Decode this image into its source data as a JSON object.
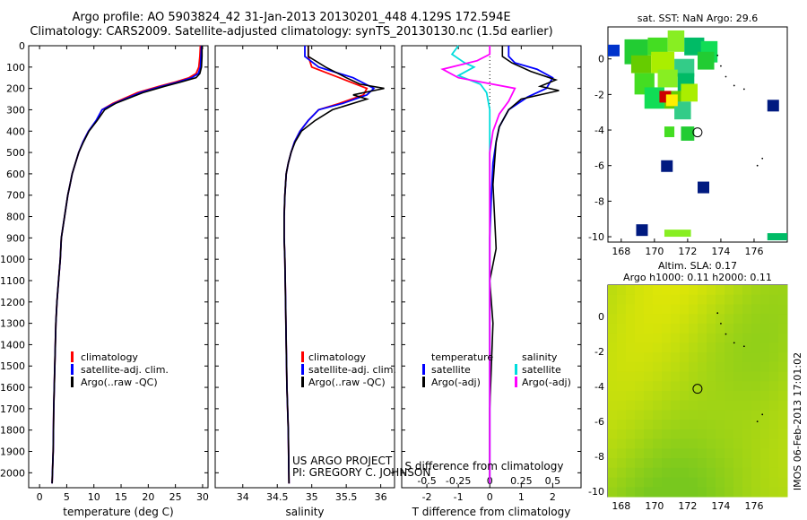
{
  "header": {
    "line1": "Argo profile: AO 5903824_42 31-Jan-2013 20130201_448 4.129S 172.594E",
    "line2": "Climatology: CARS2009. Satellite-adjusted climatology: synTS_20130130.nc (1.5d earlier)"
  },
  "colors": {
    "climatology": "#ff0000",
    "satellite": "#0000ff",
    "argo": "#000000",
    "salinity_sat": "#00dddd",
    "salinity_argo": "#ff00ff",
    "sst_ocean": "#ffffff"
  },
  "footer": {
    "project": "US ARGO PROJECT",
    "pi": "PI: GREGORY C. JOHNSON",
    "imos": "IMOS 06-Feb-2013 17:01:02"
  },
  "chart_data": [
    {
      "type": "line",
      "panel": "temperature",
      "xlabel": "temperature (deg C)",
      "xlim": [
        -2,
        31
      ],
      "xticks": [
        0,
        5,
        10,
        15,
        20,
        25,
        30
      ],
      "ylim": [
        2070,
        0
      ],
      "yticks": [
        0,
        100,
        200,
        300,
        400,
        500,
        600,
        700,
        800,
        900,
        1000,
        1100,
        1200,
        1300,
        1400,
        1500,
        1600,
        1700,
        1800,
        1900,
        2000
      ],
      "legend": [
        "climatology",
        "satellite-adj. clim.",
        "Argo(..raw -QC)"
      ],
      "series": [
        {
          "name": "climatology",
          "color_key": "climatology",
          "x": [
            29.6,
            29.5,
            29.3,
            28.8,
            27.5,
            25.0,
            22.0,
            18.0,
            13.5,
            11.5,
            10.5,
            9.0,
            8.0,
            7.2,
            6.6,
            6.0,
            5.6,
            5.2,
            4.9,
            4.6,
            4.3,
            4.0,
            3.8,
            3.5,
            3.2,
            3.0,
            2.8,
            2.6,
            2.5,
            2.3
          ],
          "y": [
            0,
            50,
            100,
            130,
            150,
            170,
            190,
            220,
            270,
            300,
            350,
            400,
            450,
            500,
            550,
            600,
            650,
            700,
            750,
            800,
            850,
            900,
            1000,
            1100,
            1200,
            1300,
            1500,
            1700,
            1900,
            2050
          ]
        },
        {
          "name": "satellite-adj. clim.",
          "color_key": "satellite",
          "x": [
            29.8,
            29.7,
            29.6,
            29.2,
            28.0,
            25.5,
            22.5,
            18.5,
            13.8,
            11.5,
            10.4,
            9.0,
            8.0,
            7.2,
            6.6,
            6.0,
            5.6,
            5.2,
            4.9,
            4.6,
            4.3,
            4.0,
            3.8,
            3.5,
            3.2,
            3.0,
            2.8,
            2.6,
            2.5,
            2.3
          ],
          "y": [
            0,
            50,
            100,
            130,
            150,
            170,
            190,
            220,
            270,
            300,
            350,
            400,
            450,
            500,
            550,
            600,
            650,
            700,
            750,
            800,
            850,
            900,
            1000,
            1100,
            1200,
            1300,
            1500,
            1700,
            1900,
            2050
          ]
        },
        {
          "name": "Argo(..raw -QC)",
          "color_key": "argo",
          "x": [
            29.9,
            29.9,
            29.8,
            29.5,
            28.8,
            26.0,
            23.0,
            19.0,
            14.0,
            12.0,
            10.6,
            9.1,
            8.1,
            7.2,
            6.6,
            6.0,
            5.6,
            5.2,
            4.9,
            4.6,
            4.3,
            4.0,
            3.8,
            3.5,
            3.2,
            3.0,
            2.8,
            2.6,
            2.5,
            2.3
          ],
          "y": [
            0,
            50,
            100,
            130,
            150,
            170,
            190,
            220,
            270,
            300,
            350,
            400,
            450,
            500,
            550,
            600,
            650,
            700,
            750,
            800,
            850,
            900,
            1000,
            1100,
            1200,
            1300,
            1500,
            1700,
            1900,
            2050
          ]
        }
      ]
    },
    {
      "type": "line",
      "panel": "salinity",
      "xlabel": "salinity",
      "xlim": [
        33.6,
        36.2
      ],
      "xticks": [
        34,
        34.5,
        35,
        35.5,
        36
      ],
      "legend": [
        "climatology",
        "satellite-adj. clim.",
        "Argo(..raw -QC)"
      ],
      "series": [
        {
          "name": "climatology",
          "color_key": "climatology",
          "x": [
            34.95,
            34.95,
            35.0,
            35.4,
            35.8,
            35.75,
            35.4,
            35.1,
            34.95,
            34.83,
            34.75,
            34.7,
            34.66,
            34.63,
            34.61,
            34.6,
            34.6,
            34.61,
            34.62,
            34.63,
            34.64,
            34.66,
            34.67
          ],
          "y": [
            0,
            50,
            100,
            150,
            200,
            230,
            270,
            300,
            350,
            400,
            450,
            500,
            550,
            600,
            700,
            800,
            900,
            1000,
            1200,
            1400,
            1600,
            1800,
            2050
          ]
        },
        {
          "name": "satellite-adj. clim.",
          "color_key": "satellite",
          "x": [
            34.9,
            34.9,
            35.1,
            35.6,
            35.9,
            35.8,
            35.45,
            35.1,
            34.95,
            34.83,
            34.75,
            34.7,
            34.66,
            34.63,
            34.61,
            34.6,
            34.6,
            34.61,
            34.62,
            34.63,
            34.64,
            34.66,
            34.67
          ],
          "y": [
            0,
            50,
            100,
            150,
            200,
            230,
            270,
            300,
            350,
            400,
            450,
            500,
            550,
            600,
            700,
            800,
            900,
            1000,
            1200,
            1400,
            1600,
            1800,
            2050
          ]
        },
        {
          "name": "Argo(..raw -QC)",
          "color_key": "argo",
          "x": [
            34.95,
            34.95,
            35.2,
            35.5,
            35.7,
            36.05,
            35.6,
            35.8,
            35.3,
            35.05,
            34.85,
            34.76,
            34.7,
            34.66,
            34.63,
            34.61,
            34.6,
            34.6,
            34.61,
            34.62,
            34.63,
            34.64,
            34.66,
            34.67
          ],
          "y": [
            0,
            50,
            100,
            150,
            180,
            200,
            230,
            250,
            300,
            350,
            400,
            450,
            500,
            550,
            600,
            700,
            800,
            900,
            1000,
            1200,
            1400,
            1600,
            1800,
            2050
          ]
        }
      ]
    },
    {
      "type": "line",
      "panel": "difference",
      "xlabel": "T difference from climatology",
      "xlabel2": "S difference from climatology",
      "xlim": [
        -2.8,
        2.9
      ],
      "xticks": [
        -2,
        -1,
        0,
        1,
        2
      ],
      "top_xticks": [
        "-0.5",
        "-0.25",
        "0",
        "0.25",
        "0.5"
      ],
      "legend_left": [
        "temperature",
        "satellite",
        "Argo(-adj)"
      ],
      "legend_right": [
        "salinity",
        "satellite",
        "Argo(-adj)"
      ],
      "series": [
        {
          "name": "satellite",
          "color_key": "satellite",
          "group": "temperature",
          "x": [
            0.6,
            0.6,
            0.8,
            1.5,
            2.0,
            1.8,
            1.2,
            0.6,
            0.3,
            0.2,
            0.1,
            0.05,
            0.0,
            0.0,
            0.0,
            0.0,
            0.0
          ],
          "y": [
            0,
            50,
            80,
            110,
            150,
            200,
            240,
            300,
            380,
            450,
            550,
            700,
            900,
            1100,
            1400,
            1800,
            2050
          ]
        },
        {
          "name": "Argo(-adj)",
          "color_key": "argo",
          "group": "temperature",
          "x": [
            0.4,
            0.4,
            0.7,
            1.3,
            2.1,
            1.6,
            2.2,
            1.0,
            0.6,
            0.3,
            0.2,
            0.15,
            0.1,
            0.2,
            0.0,
            0.1,
            0.05,
            0.0,
            0.0,
            0.0
          ],
          "y": [
            0,
            50,
            80,
            120,
            160,
            190,
            210,
            250,
            300,
            380,
            450,
            550,
            650,
            950,
            1100,
            1300,
            1500,
            1700,
            1900,
            2050
          ]
        },
        {
          "name": "satellite",
          "color_key": "salinity_sat",
          "group": "salinity",
          "x": [
            -1.0,
            -1.2,
            -0.8,
            -0.5,
            -1.0,
            -0.3,
            -0.1,
            0.0,
            0.0,
            0.0,
            0.0
          ],
          "y": [
            0,
            40,
            80,
            100,
            140,
            180,
            220,
            300,
            500,
            1000,
            2050
          ]
        },
        {
          "name": "Argo(-adj)",
          "color_key": "salinity_argo",
          "group": "salinity",
          "x": [
            0.0,
            0.0,
            -0.4,
            -1.5,
            -1.0,
            0.8,
            0.6,
            0.3,
            0.1,
            0.0,
            0.0,
            0.0
          ],
          "y": [
            0,
            40,
            70,
            110,
            150,
            200,
            260,
            320,
            400,
            500,
            1000,
            2050
          ]
        }
      ]
    },
    {
      "type": "heatmap",
      "panel": "sst-map",
      "title": "sat. SST: NaN Argo: 29.6",
      "xlim": [
        167.2,
        178
      ],
      "ylim": [
        -10.3,
        1.8
      ],
      "xticks": [
        168,
        170,
        172,
        174,
        176
      ],
      "yticks": [
        0,
        -2,
        -4,
        -6,
        -8,
        -10
      ],
      "argo_position": [
        172.594,
        -4.129
      ]
    },
    {
      "type": "heatmap",
      "panel": "sla-map",
      "title": "Altim. SLA: 0.17",
      "title2": "Argo h1000: 0.11 h2000: 0.11",
      "xlim": [
        167.2,
        178
      ],
      "ylim": [
        -10.3,
        1.8
      ],
      "xticks": [
        168,
        170,
        172,
        174,
        176
      ],
      "yticks": [
        0,
        -2,
        -4,
        -6,
        -8,
        -10
      ],
      "argo_position": [
        172.594,
        -4.129
      ]
    }
  ]
}
